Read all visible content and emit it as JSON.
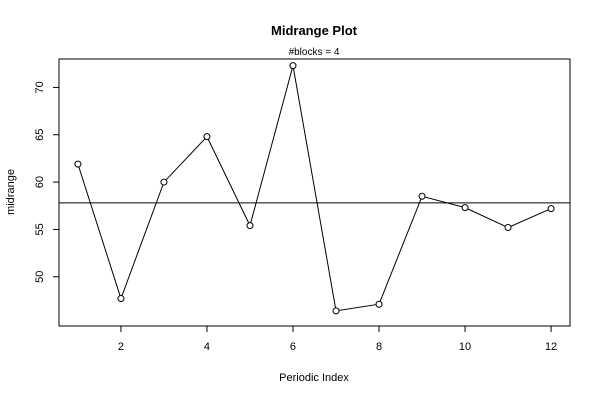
{
  "chart_data": {
    "type": "line",
    "title": "Midrange Plot",
    "subtitle": "#blocks =  4",
    "xlabel": "Periodic Index",
    "ylabel": "midrange",
    "x": [
      1,
      2,
      3,
      4,
      5,
      6,
      7,
      8,
      9,
      10,
      11,
      12
    ],
    "series": [
      {
        "values": [
          61.9,
          47.7,
          60.0,
          64.8,
          55.4,
          72.3,
          46.4,
          47.1,
          58.5,
          57.3,
          55.2,
          57.2
        ]
      }
    ],
    "reference_line": 57.8,
    "xlim": [
      0.56,
      12.44
    ],
    "ylim": [
      44.8,
      73.0
    ],
    "xticks": [
      2,
      4,
      6,
      8,
      10,
      12
    ],
    "yticks": [
      50,
      55,
      60,
      65,
      70
    ],
    "grid": false,
    "line_color": "#000000",
    "marker": "open-circle"
  }
}
